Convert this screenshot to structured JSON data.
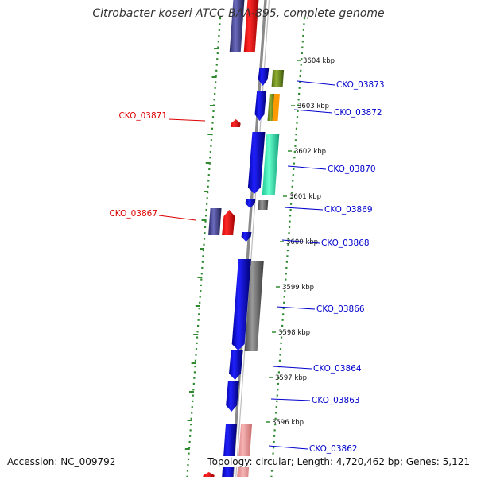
{
  "title": "Citrobacter koseri ATCC BAA-895, complete genome",
  "accession": "Accession: NC_009792",
  "topology": "Topology: circular; Length: 4,720,462 bp; Genes: 5,121",
  "colors": {
    "blue": "#0000ee",
    "red": "#ff0000",
    "gray": "#777777",
    "label_blue": "#0000cc",
    "label_red": "#dd0000",
    "tick_green": "#2f8a2f",
    "backbone": "#8a8a8a"
  },
  "scale_ticks": [
    {
      "label": "3604 kbp"
    },
    {
      "label": "3603 kbp"
    },
    {
      "label": "3602 kbp"
    },
    {
      "label": "3601 kbp"
    },
    {
      "label": "3600 kbp"
    },
    {
      "label": "3599 kbp"
    },
    {
      "label": "3598 kbp"
    },
    {
      "label": "3597 kbp"
    },
    {
      "label": "3596 kbp"
    }
  ],
  "gene_labels_right": [
    {
      "name": "CKO_03873"
    },
    {
      "name": "CKO_03872"
    },
    {
      "name": "CKO_03870"
    },
    {
      "name": "CKO_03869"
    },
    {
      "name": "CKO_03868"
    },
    {
      "name": "CKO_03866"
    },
    {
      "name": "CKO_03864"
    },
    {
      "name": "CKO_03863"
    },
    {
      "name": "CKO_03862"
    }
  ],
  "gene_labels_left": [
    {
      "name": "CKO_03871"
    },
    {
      "name": "CKO_03867"
    }
  ]
}
